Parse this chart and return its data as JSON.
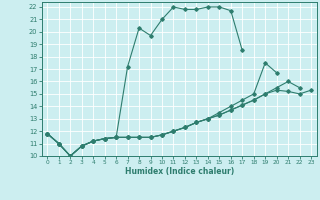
{
  "xlabel": "Humidex (Indice chaleur)",
  "xlim": [
    -0.5,
    23.5
  ],
  "ylim": [
    10,
    22.4
  ],
  "yticks": [
    10,
    11,
    12,
    13,
    14,
    15,
    16,
    17,
    18,
    19,
    20,
    21,
    22
  ],
  "xticks": [
    0,
    1,
    2,
    3,
    4,
    5,
    6,
    7,
    8,
    9,
    10,
    11,
    12,
    13,
    14,
    15,
    16,
    17,
    18,
    19,
    20,
    21,
    22,
    23
  ],
  "bg_color": "#cceef0",
  "line_color": "#2e7d6e",
  "grid_color": "#ffffff",
  "s0_x": [
    0,
    1,
    2,
    3,
    4,
    5,
    6,
    7,
    8,
    9,
    10,
    11,
    12,
    13,
    14,
    15,
    16,
    17
  ],
  "s0_y": [
    11.8,
    11.0,
    10.0,
    10.8,
    11.2,
    11.4,
    11.5,
    17.2,
    20.3,
    19.7,
    21.0,
    22.0,
    21.8,
    21.8,
    22.0,
    22.0,
    21.7,
    18.5
  ],
  "s1_x": [
    0,
    1,
    2,
    3,
    4,
    5,
    6,
    7,
    8,
    9,
    10,
    11,
    12,
    13,
    14,
    15,
    16,
    17,
    18,
    19,
    20
  ],
  "s1_y": [
    11.8,
    11.0,
    10.0,
    10.8,
    11.2,
    11.4,
    11.5,
    11.5,
    11.5,
    11.5,
    11.7,
    12.0,
    12.3,
    12.7,
    13.0,
    13.5,
    14.0,
    14.5,
    15.0,
    17.5,
    16.7
  ],
  "s2_x": [
    0,
    1,
    2,
    3,
    4,
    5,
    6,
    7,
    8,
    9,
    10,
    11,
    12,
    13,
    14,
    15,
    16,
    17,
    18,
    19,
    20,
    21,
    22
  ],
  "s2_y": [
    11.8,
    11.0,
    10.0,
    10.8,
    11.2,
    11.4,
    11.5,
    11.5,
    11.5,
    11.5,
    11.7,
    12.0,
    12.3,
    12.7,
    13.0,
    13.3,
    13.7,
    14.1,
    14.5,
    15.0,
    15.5,
    16.0,
    15.5
  ],
  "s3_x": [
    0,
    1,
    2,
    3,
    4,
    5,
    6,
    7,
    8,
    9,
    10,
    11,
    12,
    13,
    14,
    15,
    16,
    17,
    18,
    19,
    20,
    21,
    22,
    23
  ],
  "s3_y": [
    11.8,
    11.0,
    10.0,
    10.8,
    11.2,
    11.4,
    11.5,
    11.5,
    11.5,
    11.5,
    11.7,
    12.0,
    12.3,
    12.7,
    13.0,
    13.3,
    13.7,
    14.1,
    14.5,
    15.0,
    15.3,
    15.2,
    15.0,
    15.3
  ]
}
